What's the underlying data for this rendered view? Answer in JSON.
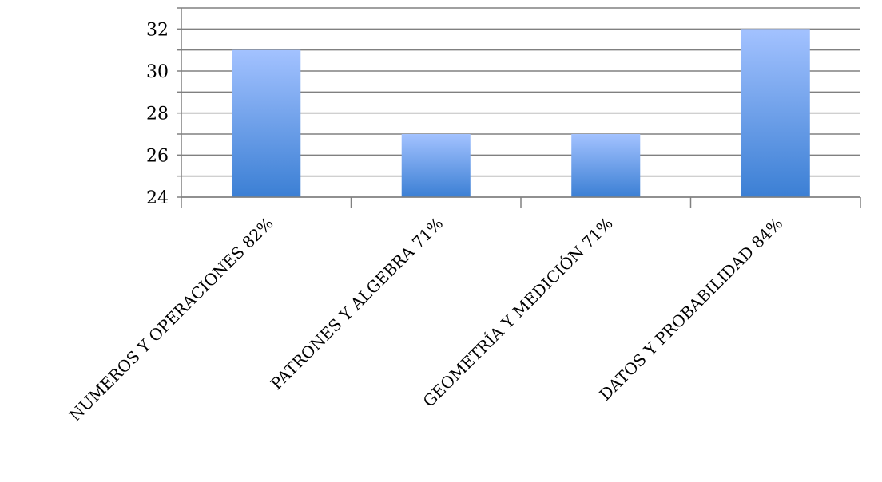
{
  "chart_data": {
    "type": "bar",
    "title": "",
    "xlabel": "",
    "ylabel": "",
    "categories": [
      "NUMEROS Y OPERACIONES 82%",
      "PATRONES Y ALGEBRA 71%",
      "GEOMETRÍA Y MEDICIÓN 71%",
      "DATOS Y PROBABILIDAD 84%"
    ],
    "values": [
      31,
      27,
      27,
      32
    ],
    "ylim": [
      24,
      33
    ],
    "yticks": [
      24,
      26,
      28,
      30,
      32
    ],
    "grid": true,
    "legend": "none",
    "bar_color_top": "#a3c2ff",
    "bar_color_bottom": "#3b7fd4",
    "grid_color": "#808080"
  }
}
